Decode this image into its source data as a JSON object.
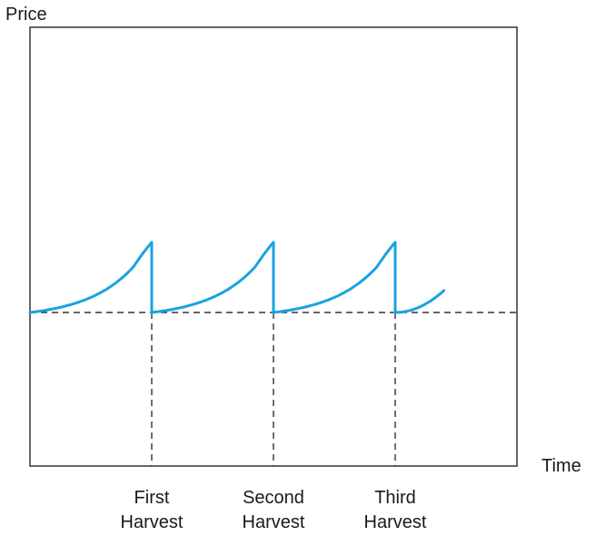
{
  "chart_data": {
    "type": "line",
    "title": "",
    "xlabel": "Time",
    "ylabel": "Price",
    "grid": false,
    "legend": "none",
    "tick_labels": [
      {
        "id": "first",
        "lines": [
          "First",
          "Harvest"
        ],
        "x": 3
      },
      {
        "id": "second",
        "lines": [
          "Second",
          "Harvest"
        ],
        "x": 6
      },
      {
        "id": "third",
        "lines": [
          "Third",
          "Harvest"
        ],
        "x": 9
      }
    ],
    "xlim": [
      0,
      12
    ],
    "ylim": [
      0,
      10
    ],
    "reference_line_y": 3.5,
    "series": [
      {
        "color": "#1aa3e0",
        "style": "sawtooth",
        "segments": [
          {
            "x_start": 0,
            "x_end": 3,
            "y_start": 3.5,
            "y_end": 5.1
          },
          {
            "x_start": 3,
            "x_end": 6,
            "y_start": 3.5,
            "y_end": 5.1
          },
          {
            "x_start": 6,
            "x_end": 9,
            "y_start": 3.5,
            "y_end": 5.1
          },
          {
            "x_start": 9,
            "x_end": 10.2,
            "y_start": 3.5,
            "y_end": 4.0
          }
        ]
      }
    ]
  }
}
